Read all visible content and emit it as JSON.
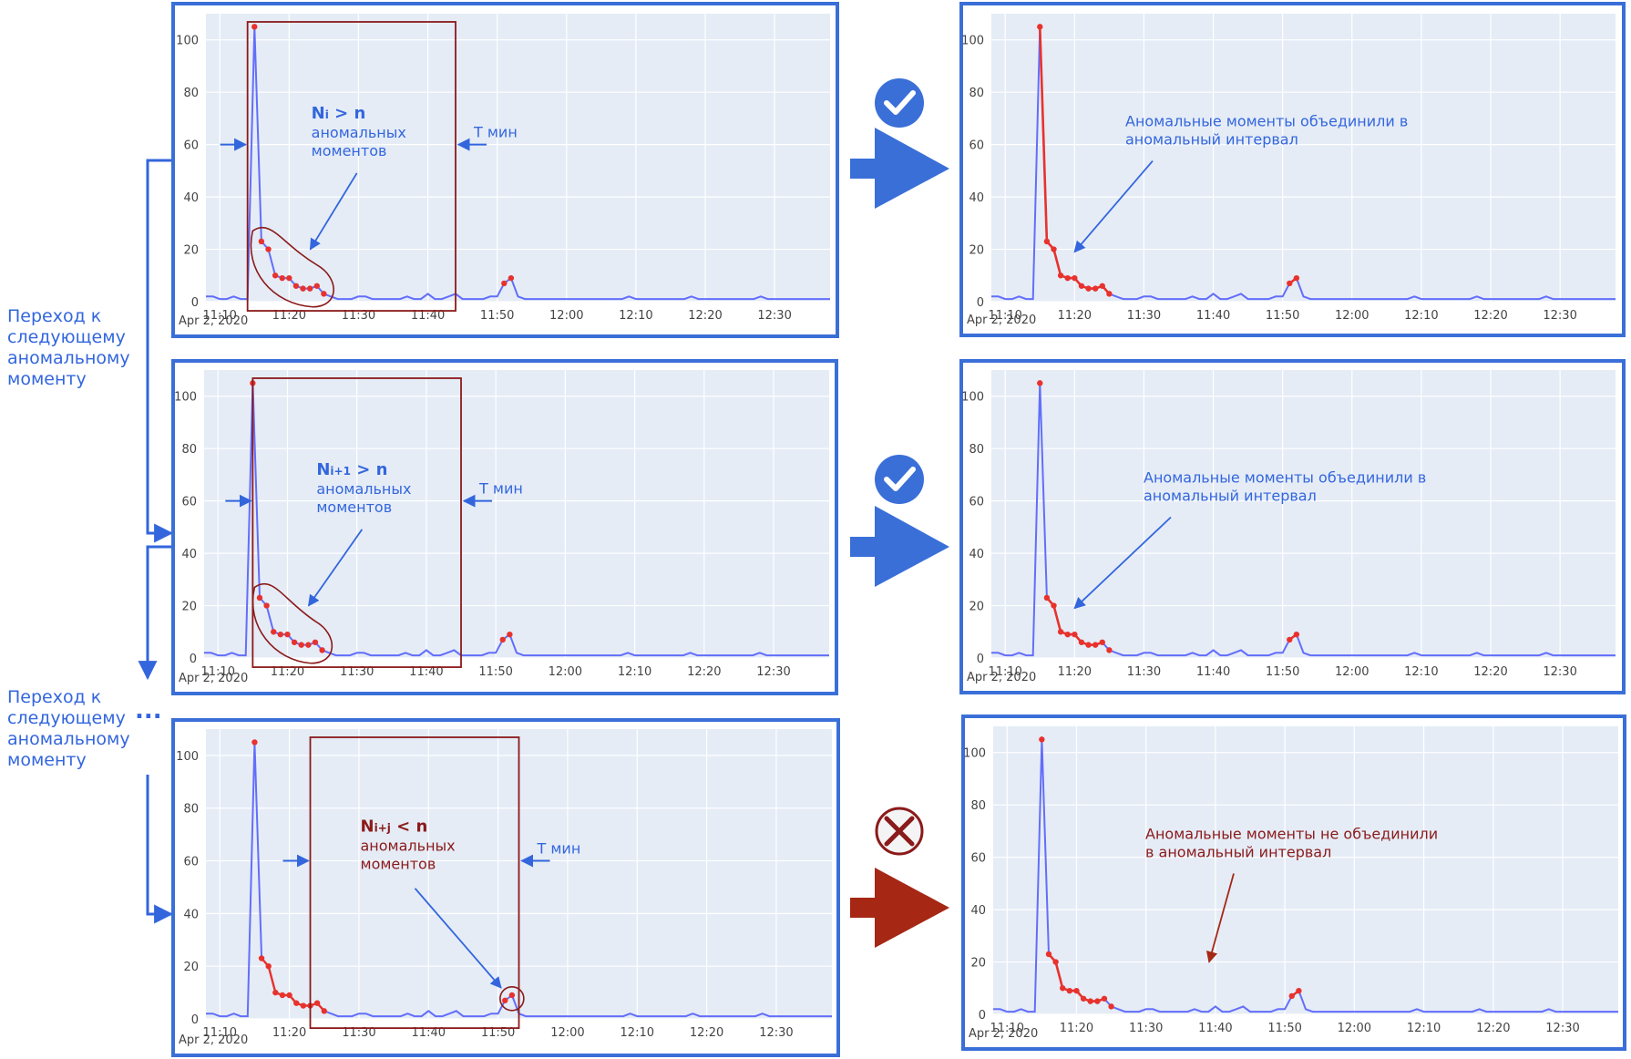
{
  "colors": {
    "accent_blue": "#3366dd",
    "frame_blue": "#3a6fd8",
    "dark_red": "#8b1a1a",
    "arrow_red": "#a52714",
    "plot_bg": "#e5ecf6",
    "grid": "#ffffff",
    "line": "#636efa",
    "anomaly": "#e8322d",
    "tick": "#444444"
  },
  "axis": {
    "x_tick_labels": [
      "11:10",
      "11:20",
      "11:30",
      "11:40",
      "11:50",
      "12:00",
      "12:10",
      "12:20",
      "12:30"
    ],
    "y_tick_labels": [
      "0",
      "20",
      "40",
      "60",
      "80",
      "100"
    ],
    "date_label": "Apr 2, 2020"
  },
  "side_labels": {
    "transition_1": [
      "Переход к",
      "следующему",
      "аномальному",
      "моменту"
    ],
    "transition_2": [
      "Переход к",
      "следующему",
      "аномальному",
      "моменту"
    ],
    "ellipsis": "..."
  },
  "status_icons": [
    "check-icon",
    "check-icon",
    "cross-icon"
  ],
  "panels_left": [
    {
      "count_main": "N",
      "count_sub": "i",
      "count_op": " > n",
      "count_text": [
        "аномальных",
        "моментов"
      ],
      "window_label": "T мин",
      "condition_met": true
    },
    {
      "count_main": "N",
      "count_sub": "i+1",
      "count_op": " > n",
      "count_text": [
        "аномальных",
        "моментов"
      ],
      "window_label": "T мин",
      "condition_met": true
    },
    {
      "count_main": "N",
      "count_sub": "i+j",
      "count_op": " < n",
      "count_text": [
        "аномальных",
        "моментов"
      ],
      "window_label": "T мин",
      "condition_met": false
    }
  ],
  "panels_right": [
    {
      "annotation": [
        "Аномальные моменты объединили в",
        "аномальный интервал"
      ],
      "merged": true
    },
    {
      "annotation": [
        "Аномальные моменты объединили в",
        "аномальный интервал"
      ],
      "merged": true
    },
    {
      "annotation": [
        "Аномальные моменты не объединили",
        "в аномальный интервал"
      ],
      "merged": false
    }
  ],
  "chart_data": {
    "type": "line",
    "x_axis": "time (Apr 2, 2020)",
    "y_range": [
      0,
      110
    ],
    "x_range": [
      "11:08",
      "12:38"
    ],
    "grid": true,
    "series": [
      {
        "time": [
          "11:08",
          "11:09",
          "11:10",
          "11:11",
          "11:12",
          "11:13",
          "11:14",
          "11:15",
          "11:16",
          "11:17",
          "11:18",
          "11:19",
          "11:20",
          "11:21",
          "11:22",
          "11:23",
          "11:24",
          "11:25",
          "11:26",
          "11:27",
          "11:28",
          "11:29",
          "11:30",
          "11:31",
          "11:32",
          "11:33",
          "11:34",
          "11:35",
          "11:36",
          "11:37",
          "11:38",
          "11:39",
          "11:40",
          "11:41",
          "11:42",
          "11:43",
          "11:44",
          "11:45",
          "11:46",
          "11:47",
          "11:48",
          "11:49",
          "11:50",
          "11:51",
          "11:52",
          "11:53",
          "11:54",
          "11:55",
          "11:56",
          "11:57",
          "11:58",
          "11:59",
          "12:00",
          "12:01",
          "12:02",
          "12:03",
          "12:04",
          "12:05",
          "12:06",
          "12:07",
          "12:08",
          "12:09",
          "12:10",
          "12:11",
          "12:12",
          "12:13",
          "12:14",
          "12:15",
          "12:16",
          "12:17",
          "12:18",
          "12:19",
          "12:20",
          "12:21",
          "12:22",
          "12:23",
          "12:24",
          "12:25",
          "12:26",
          "12:27",
          "12:28",
          "12:29",
          "12:30",
          "12:31",
          "12:32",
          "12:33",
          "12:34",
          "12:35",
          "12:36",
          "12:37",
          "12:38"
        ],
        "values": [
          2,
          2,
          1,
          1,
          2,
          1,
          1,
          105,
          23,
          20,
          10,
          9,
          9,
          6,
          5,
          5,
          6,
          3,
          2,
          1,
          1,
          1,
          2,
          2,
          1,
          1,
          1,
          1,
          1,
          2,
          1,
          1,
          3,
          1,
          1,
          2,
          3,
          1,
          1,
          1,
          1,
          2,
          2,
          7,
          9,
          2,
          1,
          1,
          1,
          1,
          1,
          1,
          1,
          1,
          1,
          1,
          1,
          1,
          1,
          1,
          1,
          2,
          1,
          1,
          1,
          1,
          1,
          1,
          1,
          1,
          2,
          1,
          1,
          1,
          1,
          1,
          1,
          1,
          1,
          1,
          2,
          1,
          1,
          1,
          1,
          1,
          1,
          1,
          1,
          1,
          1
        ]
      }
    ],
    "anomalies": [
      {
        "time": "11:15",
        "value": 105
      },
      {
        "time": "11:16",
        "value": 23
      },
      {
        "time": "11:17",
        "value": 20
      },
      {
        "time": "11:18",
        "value": 10
      },
      {
        "time": "11:19",
        "value": 9
      },
      {
        "time": "11:20",
        "value": 9
      },
      {
        "time": "11:21",
        "value": 6
      },
      {
        "time": "11:22",
        "value": 5
      },
      {
        "time": "11:23",
        "value": 5
      },
      {
        "time": "11:24",
        "value": 6
      },
      {
        "time": "11:25",
        "value": 3
      },
      {
        "time": "11:51",
        "value": 7
      },
      {
        "time": "11:52",
        "value": 9
      }
    ]
  }
}
